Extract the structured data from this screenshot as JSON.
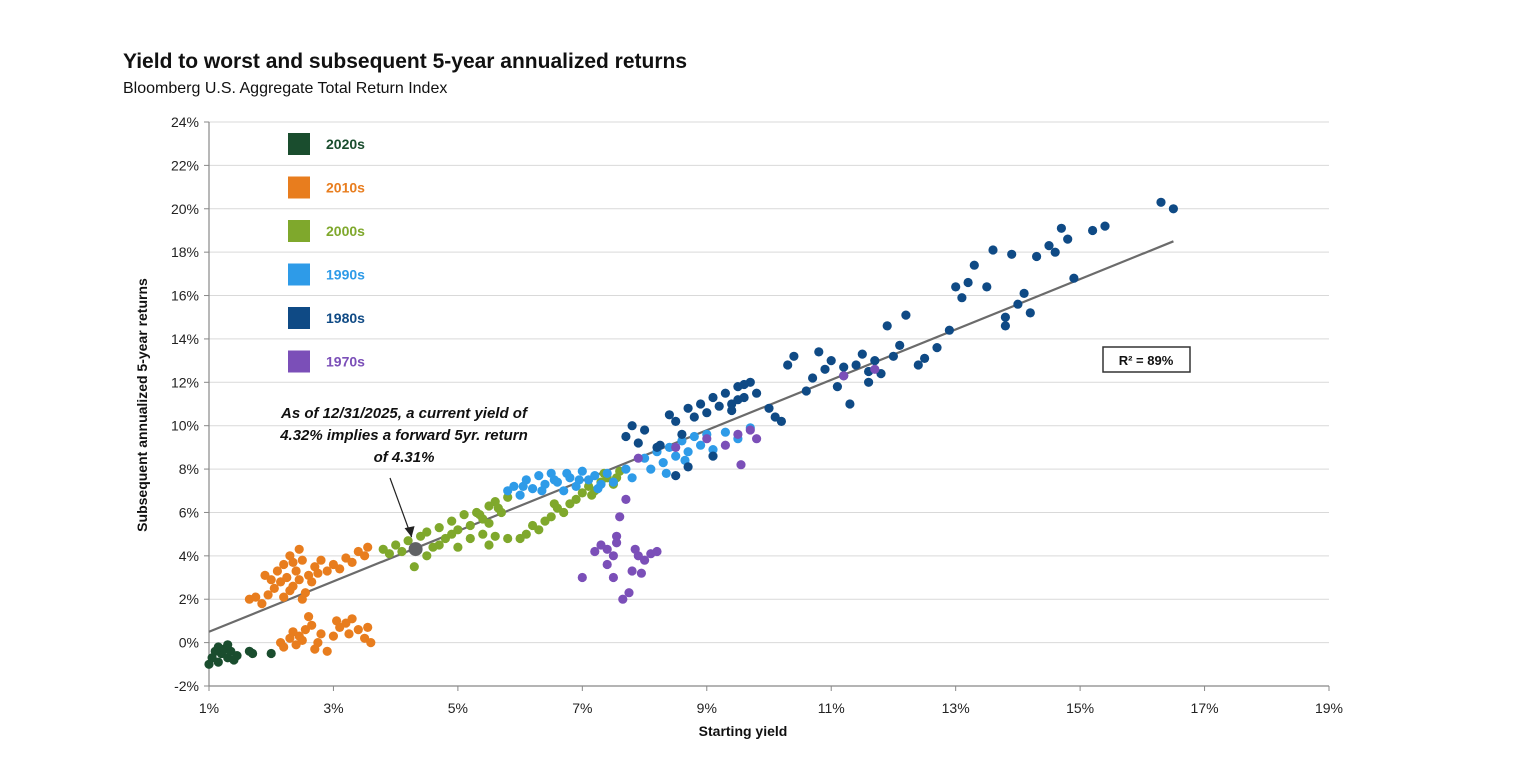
{
  "chart_data": {
    "type": "scatter",
    "title": "Yield to worst and subsequent 5-year annualized returns",
    "subtitle": "Bloomberg U.S. Aggregate Total Return Index",
    "xlabel": "Starting yield",
    "ylabel": "Subsequent annualized 5-year returns",
    "xlim": [
      1,
      19
    ],
    "ylim": [
      -2,
      24
    ],
    "x_ticks": [
      1,
      3,
      5,
      7,
      9,
      11,
      13,
      15,
      17,
      19
    ],
    "x_tick_labels": [
      "1%",
      "3%",
      "5%",
      "7%",
      "9%",
      "11%",
      "13%",
      "15%",
      "17%",
      "19%"
    ],
    "y_ticks": [
      -2,
      0,
      2,
      4,
      6,
      8,
      10,
      12,
      14,
      16,
      18,
      20,
      22,
      24
    ],
    "y_tick_labels": [
      "-2%",
      "0%",
      "2%",
      "4%",
      "6%",
      "8%",
      "10%",
      "12%",
      "14%",
      "16%",
      "18%",
      "20%",
      "22%",
      "24%"
    ],
    "grid": true,
    "legend_position": "top-left",
    "series": [
      {
        "name": "2020s",
        "color": "#1a4d2e",
        "points": [
          [
            1.0,
            -1.0
          ],
          [
            1.05,
            -0.7
          ],
          [
            1.1,
            -0.4
          ],
          [
            1.15,
            -0.2
          ],
          [
            1.2,
            -0.5
          ],
          [
            1.25,
            -0.3
          ],
          [
            1.3,
            -0.7
          ],
          [
            1.35,
            -0.4
          ],
          [
            1.4,
            -0.8
          ],
          [
            1.45,
            -0.6
          ],
          [
            1.15,
            -0.9
          ],
          [
            1.3,
            -0.1
          ],
          [
            1.65,
            -0.4
          ],
          [
            1.7,
            -0.5
          ],
          [
            2.0,
            -0.5
          ]
        ]
      },
      {
        "name": "2010s",
        "color": "#e87d1e",
        "points": [
          [
            1.65,
            2.0
          ],
          [
            1.75,
            2.1
          ],
          [
            1.85,
            1.8
          ],
          [
            1.9,
            3.1
          ],
          [
            1.95,
            2.2
          ],
          [
            2.0,
            2.9
          ],
          [
            2.05,
            2.5
          ],
          [
            2.1,
            3.3
          ],
          [
            2.15,
            2.8
          ],
          [
            2.2,
            3.6
          ],
          [
            2.25,
            3.0
          ],
          [
            2.3,
            4.0
          ],
          [
            2.35,
            2.6
          ],
          [
            2.4,
            3.3
          ],
          [
            2.45,
            4.3
          ],
          [
            2.5,
            3.8
          ],
          [
            2.55,
            2.3
          ],
          [
            2.6,
            3.1
          ],
          [
            2.65,
            2.8
          ],
          [
            2.7,
            3.5
          ],
          [
            2.75,
            3.2
          ],
          [
            2.8,
            3.8
          ],
          [
            2.9,
            3.3
          ],
          [
            3.0,
            3.6
          ],
          [
            3.1,
            3.4
          ],
          [
            3.2,
            3.9
          ],
          [
            3.3,
            3.7
          ],
          [
            3.4,
            4.2
          ],
          [
            3.5,
            4.0
          ],
          [
            3.55,
            4.4
          ],
          [
            2.2,
            2.1
          ],
          [
            2.3,
            2.4
          ],
          [
            2.35,
            3.7
          ],
          [
            2.45,
            2.9
          ],
          [
            2.5,
            2.0
          ],
          [
            2.15,
            0.0
          ],
          [
            2.2,
            -0.2
          ],
          [
            2.3,
            0.2
          ],
          [
            2.35,
            0.5
          ],
          [
            2.4,
            -0.1
          ],
          [
            2.45,
            0.3
          ],
          [
            2.5,
            0.1
          ],
          [
            2.55,
            0.6
          ],
          [
            2.6,
            1.2
          ],
          [
            2.65,
            0.8
          ],
          [
            2.7,
            -0.3
          ],
          [
            2.75,
            0.0
          ],
          [
            2.8,
            0.4
          ],
          [
            2.9,
            -0.4
          ],
          [
            3.0,
            0.3
          ],
          [
            3.05,
            1.0
          ],
          [
            3.1,
            0.7
          ],
          [
            3.2,
            0.9
          ],
          [
            3.25,
            0.4
          ],
          [
            3.3,
            1.1
          ],
          [
            3.4,
            0.6
          ],
          [
            3.5,
            0.2
          ],
          [
            3.55,
            0.7
          ],
          [
            3.6,
            0.0
          ]
        ]
      },
      {
        "name": "2000s",
        "color": "#7fa82c",
        "points": [
          [
            3.8,
            4.3
          ],
          [
            3.9,
            4.1
          ],
          [
            4.0,
            4.5
          ],
          [
            4.1,
            4.2
          ],
          [
            4.2,
            4.7
          ],
          [
            4.3,
            3.5
          ],
          [
            4.4,
            4.9
          ],
          [
            4.5,
            5.1
          ],
          [
            4.6,
            4.4
          ],
          [
            4.7,
            5.3
          ],
          [
            4.8,
            4.8
          ],
          [
            4.9,
            5.6
          ],
          [
            5.0,
            5.2
          ],
          [
            5.1,
            5.9
          ],
          [
            5.2,
            5.4
          ],
          [
            5.3,
            6.0
          ],
          [
            5.4,
            5.7
          ],
          [
            5.5,
            6.3
          ],
          [
            5.6,
            6.5
          ],
          [
            5.7,
            6.0
          ],
          [
            5.8,
            6.7
          ],
          [
            4.5,
            4.0
          ],
          [
            4.7,
            4.5
          ],
          [
            4.9,
            5.0
          ],
          [
            5.0,
            4.4
          ],
          [
            5.2,
            4.8
          ],
          [
            5.4,
            5.0
          ],
          [
            5.5,
            4.5
          ],
          [
            5.6,
            4.9
          ],
          [
            5.8,
            4.8
          ],
          [
            6.0,
            4.8
          ],
          [
            6.1,
            5.0
          ],
          [
            6.3,
            5.2
          ],
          [
            6.4,
            5.6
          ],
          [
            6.5,
            5.8
          ],
          [
            6.6,
            6.2
          ],
          [
            6.7,
            6.0
          ],
          [
            6.8,
            6.4
          ],
          [
            6.9,
            6.6
          ],
          [
            7.0,
            6.9
          ],
          [
            7.1,
            7.2
          ],
          [
            7.2,
            7.0
          ],
          [
            7.3,
            7.4
          ],
          [
            7.4,
            7.6
          ],
          [
            7.5,
            7.3
          ],
          [
            7.6,
            7.9
          ],
          [
            5.35,
            5.9
          ],
          [
            5.5,
            5.5
          ],
          [
            5.65,
            6.2
          ],
          [
            6.2,
            5.4
          ],
          [
            6.55,
            6.4
          ],
          [
            7.15,
            6.8
          ],
          [
            7.35,
            7.8
          ],
          [
            7.55,
            7.6
          ]
        ]
      },
      {
        "name": "1990s",
        "color": "#2e9be8",
        "points": [
          [
            5.8,
            7.0
          ],
          [
            5.9,
            7.2
          ],
          [
            6.0,
            6.8
          ],
          [
            6.1,
            7.5
          ],
          [
            6.2,
            7.1
          ],
          [
            6.3,
            7.7
          ],
          [
            6.4,
            7.3
          ],
          [
            6.5,
            7.8
          ],
          [
            6.6,
            7.4
          ],
          [
            6.7,
            7.0
          ],
          [
            6.8,
            7.6
          ],
          [
            6.9,
            7.2
          ],
          [
            7.0,
            7.9
          ],
          [
            7.1,
            7.5
          ],
          [
            7.2,
            7.7
          ],
          [
            7.3,
            7.3
          ],
          [
            7.4,
            7.8
          ],
          [
            7.5,
            7.4
          ],
          [
            7.7,
            8.0
          ],
          [
            7.8,
            7.6
          ],
          [
            8.0,
            8.5
          ],
          [
            8.1,
            8.0
          ],
          [
            8.2,
            8.8
          ],
          [
            8.3,
            8.3
          ],
          [
            8.4,
            9.0
          ],
          [
            8.5,
            8.6
          ],
          [
            8.6,
            9.3
          ],
          [
            8.7,
            8.8
          ],
          [
            8.8,
            9.5
          ],
          [
            8.9,
            9.1
          ],
          [
            9.0,
            9.6
          ],
          [
            9.1,
            8.9
          ],
          [
            9.3,
            9.7
          ],
          [
            9.5,
            9.4
          ],
          [
            9.7,
            9.9
          ],
          [
            6.05,
            7.2
          ],
          [
            6.35,
            7.0
          ],
          [
            6.55,
            7.5
          ],
          [
            6.75,
            7.8
          ],
          [
            6.95,
            7.5
          ],
          [
            7.25,
            7.1
          ],
          [
            8.35,
            7.8
          ],
          [
            8.65,
            8.4
          ]
        ]
      },
      {
        "name": "1980s",
        "color": "#0f4a85",
        "points": [
          [
            7.7,
            9.5
          ],
          [
            7.8,
            10.0
          ],
          [
            7.9,
            9.2
          ],
          [
            8.0,
            9.8
          ],
          [
            8.2,
            9.0
          ],
          [
            8.4,
            10.5
          ],
          [
            8.5,
            10.2
          ],
          [
            8.6,
            9.6
          ],
          [
            8.7,
            10.8
          ],
          [
            8.8,
            10.4
          ],
          [
            8.9,
            11.0
          ],
          [
            9.0,
            10.6
          ],
          [
            9.1,
            11.3
          ],
          [
            9.2,
            10.9
          ],
          [
            9.3,
            11.5
          ],
          [
            9.4,
            11.0
          ],
          [
            9.5,
            11.8
          ],
          [
            9.6,
            11.3
          ],
          [
            9.7,
            12.0
          ],
          [
            9.8,
            11.5
          ],
          [
            10.0,
            10.8
          ],
          [
            10.2,
            10.2
          ],
          [
            10.3,
            12.8
          ],
          [
            10.4,
            13.2
          ],
          [
            10.6,
            11.6
          ],
          [
            10.7,
            12.2
          ],
          [
            10.8,
            13.4
          ],
          [
            10.9,
            12.6
          ],
          [
            11.0,
            13.0
          ],
          [
            11.1,
            11.8
          ],
          [
            11.2,
            12.3
          ],
          [
            11.3,
            11.0
          ],
          [
            11.4,
            12.8
          ],
          [
            11.5,
            13.3
          ],
          [
            11.6,
            12.5
          ],
          [
            11.7,
            13.0
          ],
          [
            11.8,
            12.4
          ],
          [
            11.9,
            14.6
          ],
          [
            12.0,
            13.2
          ],
          [
            12.2,
            15.1
          ],
          [
            12.4,
            12.8
          ],
          [
            12.5,
            13.1
          ],
          [
            12.7,
            13.6
          ],
          [
            12.9,
            14.4
          ],
          [
            13.0,
            16.4
          ],
          [
            13.1,
            15.9
          ],
          [
            13.2,
            16.6
          ],
          [
            13.3,
            17.4
          ],
          [
            13.5,
            16.4
          ],
          [
            13.6,
            18.1
          ],
          [
            13.8,
            15.0
          ],
          [
            13.9,
            17.9
          ],
          [
            14.0,
            15.6
          ],
          [
            14.1,
            16.1
          ],
          [
            14.2,
            15.2
          ],
          [
            14.3,
            17.8
          ],
          [
            14.5,
            18.3
          ],
          [
            14.6,
            18.0
          ],
          [
            14.7,
            19.1
          ],
          [
            14.8,
            18.6
          ],
          [
            14.9,
            16.8
          ],
          [
            15.2,
            19.0
          ],
          [
            15.4,
            19.2
          ],
          [
            16.3,
            20.3
          ],
          [
            16.5,
            20.0
          ],
          [
            8.5,
            7.7
          ],
          [
            8.7,
            8.1
          ],
          [
            9.1,
            8.6
          ],
          [
            8.25,
            9.1
          ],
          [
            9.6,
            11.9
          ],
          [
            11.2,
            12.7
          ],
          [
            12.1,
            13.7
          ],
          [
            13.8,
            14.6
          ],
          [
            9.5,
            11.2
          ],
          [
            9.4,
            10.7
          ],
          [
            10.1,
            10.4
          ],
          [
            11.6,
            12.0
          ]
        ]
      },
      {
        "name": "1970s",
        "color": "#7b4fb8",
        "points": [
          [
            7.0,
            3.0
          ],
          [
            7.2,
            4.2
          ],
          [
            7.3,
            4.5
          ],
          [
            7.4,
            3.6
          ],
          [
            7.5,
            4.0
          ],
          [
            7.5,
            3.0
          ],
          [
            7.55,
            4.6
          ],
          [
            7.6,
            5.8
          ],
          [
            7.65,
            2.0
          ],
          [
            7.7,
            6.6
          ],
          [
            7.75,
            2.3
          ],
          [
            7.8,
            3.3
          ],
          [
            7.85,
            4.3
          ],
          [
            7.9,
            4.0
          ],
          [
            7.95,
            3.2
          ],
          [
            8.0,
            3.8
          ],
          [
            8.1,
            4.1
          ],
          [
            8.2,
            4.2
          ],
          [
            7.4,
            4.3
          ],
          [
            7.55,
            4.9
          ],
          [
            7.9,
            8.5
          ],
          [
            8.5,
            9.0
          ],
          [
            9.0,
            9.4
          ],
          [
            9.3,
            9.1
          ],
          [
            9.5,
            9.6
          ],
          [
            9.55,
            8.2
          ],
          [
            9.7,
            9.8
          ],
          [
            9.8,
            9.4
          ],
          [
            11.2,
            12.3
          ],
          [
            11.7,
            12.6
          ]
        ]
      },
      {
        "name": "Current",
        "color": "#5f6163",
        "points": [
          [
            4.32,
            4.31
          ]
        ]
      }
    ],
    "trendline": {
      "x": [
        1.0,
        16.5
      ],
      "y": [
        0.5,
        18.5
      ]
    },
    "r_squared_label": "R² = 89%",
    "annotation": {
      "lines": [
        "As of 12/31/2025,  a current yield of",
        "4.32% implies a forward  5yr. return",
        "of 4.31%"
      ],
      "point": [
        4.32,
        4.31
      ]
    },
    "legend": [
      {
        "label": "2020s",
        "color": "#1a4d2e"
      },
      {
        "label": "2010s",
        "color": "#e87d1e"
      },
      {
        "label": "2000s",
        "color": "#7fa82c"
      },
      {
        "label": "1990s",
        "color": "#2e9be8"
      },
      {
        "label": "1980s",
        "color": "#0f4a85"
      },
      {
        "label": "1970s",
        "color": "#7b4fb8"
      }
    ]
  }
}
